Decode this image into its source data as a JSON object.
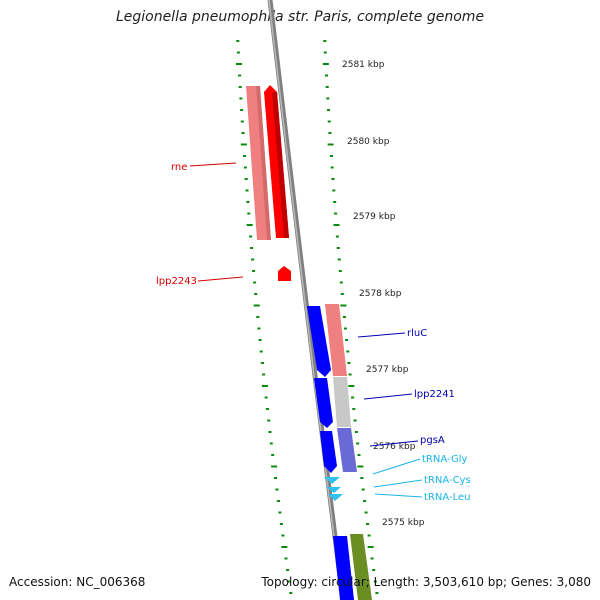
{
  "title": "Legionella pneumophila str. Paris, complete genome",
  "accession": "Accession: NC_006368",
  "summary": "Topology: circular; Length: 3,503,610 bp; Genes: 3,080",
  "ruler": [
    "2581 kbp",
    "2580 kbp",
    "2579 kbp",
    "2578 kbp",
    "2577 kbp",
    "2576 kbp",
    "2575 kbp"
  ],
  "genes_reverse": [
    {
      "label": "rne",
      "color": "#d40000"
    },
    {
      "label": "lpp2243",
      "color": "#d40000"
    }
  ],
  "genes_forward": [
    {
      "label": "rluC",
      "color": "#0000b4"
    },
    {
      "label": "lpp2241",
      "color": "#0000b4"
    },
    {
      "label": "pgsA",
      "color": "#0000b4"
    }
  ],
  "trna": [
    {
      "label": "tRNA-Gly",
      "color": "#19b4e6"
    },
    {
      "label": "tRNA-Cys",
      "color": "#19b4e6"
    },
    {
      "label": "tRNA-Leu",
      "color": "#19b4e6"
    }
  ],
  "colors": {
    "backbone": "#808080",
    "tick": "#0a8a0a",
    "gene_red_light": "#f08080",
    "gene_red": "#ff0000",
    "gene_blue": "#0000ff",
    "gene_gray": "#c8c8c8",
    "gene_purple": "#6a6ad6",
    "gene_green": "#6b8e23",
    "trna_cyan": "#30c0f0"
  }
}
